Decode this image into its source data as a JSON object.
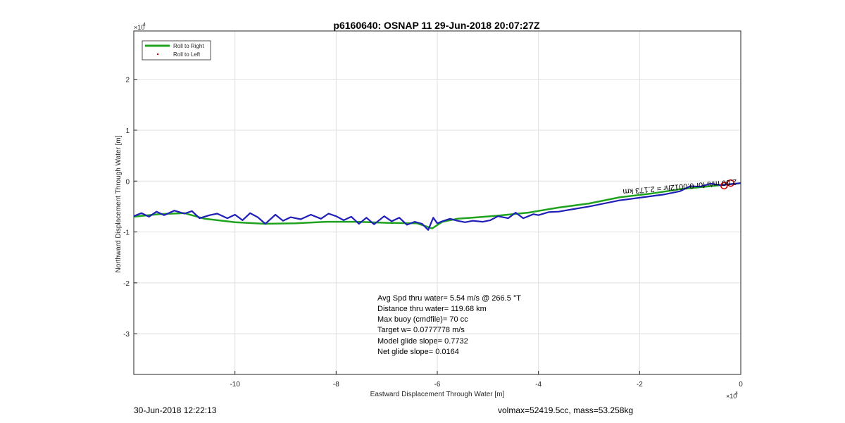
{
  "chart_data": {
    "type": "line",
    "title": "p6160640: OSNAP 11 29-Jun-2018 20:07:27Z",
    "xlabel": "Eastward Displacement Through Water [m]",
    "ylabel": "Northward Displacement Through Water [m]",
    "x_multiplier_label": "×10",
    "x_multiplier_exp": "4",
    "y_multiplier_label": "×10",
    "y_multiplier_exp": "4",
    "xlim": [
      -12,
      0
    ],
    "ylim": [
      -3.8,
      2.95
    ],
    "xticks": [
      -10,
      -8,
      -6,
      -4,
      -2,
      0
    ],
    "xtick_labels": [
      "-10",
      "-8",
      "-6",
      "-4",
      "-2",
      "0"
    ],
    "yticks": [
      -3,
      -2,
      -1,
      0,
      1,
      2
    ],
    "ytick_labels": [
      "-3",
      "-2",
      "-1",
      "0",
      "1",
      "2"
    ],
    "grid": true,
    "legend_position": "top-left",
    "legend": [
      {
        "label": "Roll to Right",
        "color": "#1fa31f",
        "style": "line"
      },
      {
        "label": "Roll to Left",
        "color": "#cc0000",
        "style": "dot"
      }
    ],
    "series": [
      {
        "name": "Roll to Right",
        "color": "#1fa31f",
        "points": [
          [
            0,
            -0.04
          ],
          [
            -0.6,
            -0.1
          ],
          [
            -1.2,
            -0.16
          ],
          [
            -1.8,
            -0.25
          ],
          [
            -2.4,
            -0.32
          ],
          [
            -3.0,
            -0.44
          ],
          [
            -3.6,
            -0.52
          ],
          [
            -4.2,
            -0.62
          ],
          [
            -4.8,
            -0.68
          ],
          [
            -5.3,
            -0.72
          ],
          [
            -5.6,
            -0.74
          ],
          [
            -5.9,
            -0.8
          ],
          [
            -6.1,
            -0.93
          ],
          [
            -6.4,
            -0.83
          ],
          [
            -7.0,
            -0.82
          ],
          [
            -7.6,
            -0.8
          ],
          [
            -8.2,
            -0.8
          ],
          [
            -8.8,
            -0.83
          ],
          [
            -9.4,
            -0.84
          ],
          [
            -10.0,
            -0.81
          ],
          [
            -10.6,
            -0.74
          ],
          [
            -11.0,
            -0.63
          ],
          [
            -11.5,
            -0.65
          ],
          [
            -12.0,
            -0.7
          ]
        ]
      },
      {
        "name": "track",
        "color": "#1f1fb8",
        "points": [
          [
            0,
            -0.04
          ],
          [
            -0.2,
            -0.06
          ],
          [
            -0.4,
            -0.08
          ],
          [
            -0.6,
            -0.05
          ],
          [
            -0.8,
            -0.11
          ],
          [
            -1.0,
            -0.1
          ],
          [
            -1.2,
            -0.2
          ],
          [
            -1.5,
            -0.26
          ],
          [
            -1.8,
            -0.3
          ],
          [
            -2.1,
            -0.34
          ],
          [
            -2.4,
            -0.38
          ],
          [
            -2.7,
            -0.44
          ],
          [
            -3.0,
            -0.5
          ],
          [
            -3.3,
            -0.55
          ],
          [
            -3.6,
            -0.6
          ],
          [
            -3.8,
            -0.61
          ],
          [
            -4.0,
            -0.67
          ],
          [
            -4.1,
            -0.65
          ],
          [
            -4.3,
            -0.73
          ],
          [
            -4.45,
            -0.62
          ],
          [
            -4.6,
            -0.73
          ],
          [
            -4.8,
            -0.69
          ],
          [
            -4.95,
            -0.77
          ],
          [
            -5.1,
            -0.8
          ],
          [
            -5.3,
            -0.78
          ],
          [
            -5.45,
            -0.81
          ],
          [
            -5.6,
            -0.78
          ],
          [
            -5.75,
            -0.74
          ],
          [
            -5.9,
            -0.79
          ],
          [
            -6.0,
            -0.83
          ],
          [
            -6.08,
            -0.72
          ],
          [
            -6.18,
            -0.96
          ],
          [
            -6.3,
            -0.84
          ],
          [
            -6.45,
            -0.8
          ],
          [
            -6.6,
            -0.86
          ],
          [
            -6.75,
            -0.72
          ],
          [
            -6.9,
            -0.79
          ],
          [
            -7.05,
            -0.69
          ],
          [
            -7.25,
            -0.85
          ],
          [
            -7.4,
            -0.72
          ],
          [
            -7.55,
            -0.84
          ],
          [
            -7.7,
            -0.7
          ],
          [
            -7.85,
            -0.77
          ],
          [
            -8.0,
            -0.69
          ],
          [
            -8.15,
            -0.64
          ],
          [
            -8.3,
            -0.74
          ],
          [
            -8.5,
            -0.66
          ],
          [
            -8.7,
            -0.75
          ],
          [
            -8.9,
            -0.71
          ],
          [
            -9.05,
            -0.78
          ],
          [
            -9.2,
            -0.66
          ],
          [
            -9.4,
            -0.84
          ],
          [
            -9.55,
            -0.71
          ],
          [
            -9.7,
            -0.63
          ],
          [
            -9.85,
            -0.77
          ],
          [
            -10.0,
            -0.66
          ],
          [
            -10.15,
            -0.73
          ],
          [
            -10.35,
            -0.64
          ],
          [
            -10.5,
            -0.67
          ],
          [
            -10.7,
            -0.73
          ],
          [
            -10.85,
            -0.59
          ],
          [
            -11.0,
            -0.64
          ],
          [
            -11.2,
            -0.58
          ],
          [
            -11.4,
            -0.67
          ],
          [
            -11.55,
            -0.6
          ],
          [
            -11.7,
            -0.7
          ],
          [
            -11.85,
            -0.63
          ],
          [
            -12.0,
            -0.69
          ]
        ]
      }
    ],
    "markers": [
      {
        "x": -0.33,
        "y": -0.09,
        "color": "#cc0000"
      },
      {
        "x": -0.2,
        "y": -0.04,
        "color": "#cc0000"
      }
    ],
    "track_annotation": "2.00 m/s for 0.0012hr = 2.173 km",
    "stats": [
      "Avg Spd thru water=  5.54 m/s @ 266.5 °T",
      "Distance thru water= 119.68 km",
      "Max buoy (cmdfile)= 70 cc",
      "Target w= 0.0777778 m/s",
      "Model glide slope= 0.7732",
      "Net glide slope= 0.0164"
    ]
  },
  "footer": {
    "left": "30-Jun-2018 12:22:13",
    "right": "volmax=52419.5cc, mass=53.258kg"
  }
}
